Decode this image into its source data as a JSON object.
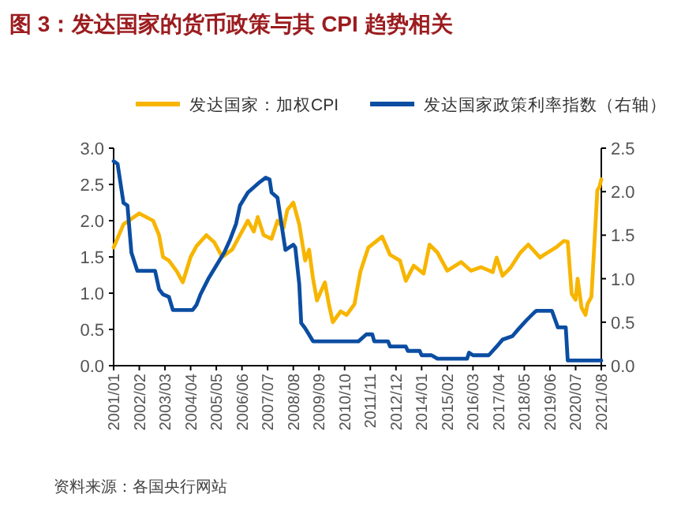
{
  "chart_data": {
    "type": "line",
    "title": "图 3：发达国家的货币政策与其 CPI 趋势相关",
    "annotations": [
      "资料来源：各国央行网站"
    ],
    "legend": "top",
    "grid": false,
    "marker": "none",
    "line_style": "solid",
    "xlim": [
      "2001-01",
      "2021-08"
    ],
    "xticks": [
      {
        "value": "2001-01",
        "label": "2001/01"
      },
      {
        "value": "2002-02",
        "label": "2002/02"
      },
      {
        "value": "2003-03",
        "label": "2003/03"
      },
      {
        "value": "2004-04",
        "label": "2004/04"
      },
      {
        "value": "2005-05",
        "label": "2005/05"
      },
      {
        "value": "2006-06",
        "label": "2006/06"
      },
      {
        "value": "2007-07",
        "label": "2007/07"
      },
      {
        "value": "2008-08",
        "label": "2008/08"
      },
      {
        "value": "2009-09",
        "label": "2009/09"
      },
      {
        "value": "2010-10",
        "label": "2010/10"
      },
      {
        "value": "2011-11",
        "label": "2011/11"
      },
      {
        "value": "2012-12",
        "label": "2012/12"
      },
      {
        "value": "2014-01",
        "label": "2014/01"
      },
      {
        "value": "2015-02",
        "label": "2015/02"
      },
      {
        "value": "2016-03",
        "label": "2016/03"
      },
      {
        "value": "2017-04",
        "label": "2017/04"
      },
      {
        "value": "2018-05",
        "label": "2018/05"
      },
      {
        "value": "2019-06",
        "label": "2019/06"
      },
      {
        "value": "2020-07",
        "label": "2020/07"
      },
      {
        "value": "2021-08",
        "label": "2021/08"
      }
    ],
    "ylim": [
      0,
      3.0
    ],
    "yticks": [
      {
        "value": 0,
        "label": "0.0"
      },
      {
        "value": 0.5,
        "label": "0.5"
      },
      {
        "value": 1,
        "label": "1.0"
      },
      {
        "value": 1.5,
        "label": "1.5"
      },
      {
        "value": 2,
        "label": "2.0"
      },
      {
        "value": 2.5,
        "label": "2.5"
      },
      {
        "value": 3,
        "label": "3.0"
      }
    ],
    "y2lim": [
      0,
      2.5
    ],
    "y2ticks": [
      {
        "value": 0,
        "label": "0.0"
      },
      {
        "value": 0.5,
        "label": "0.5"
      },
      {
        "value": 1,
        "label": "1.0"
      },
      {
        "value": 1.5,
        "label": "1.5"
      },
      {
        "value": 2,
        "label": "2.0"
      },
      {
        "value": 2.5,
        "label": "2.5"
      }
    ],
    "series": [
      {
        "name": "发达国家：加权CPI",
        "color": "#f7b500",
        "x": [
          "2001-01",
          "2001-06",
          "2002-02",
          "2002-09",
          "2002-12",
          "2003-02",
          "2003-05",
          "2003-09",
          "2003-12",
          "2004-04",
          "2004-07",
          "2004-12",
          "2005-04",
          "2005-08",
          "2006-01",
          "2006-05",
          "2006-09",
          "2006-12",
          "2007-02",
          "2007-05",
          "2007-09",
          "2007-12",
          "2008-03",
          "2008-05",
          "2008-08",
          "2008-11",
          "2009-02",
          "2009-04",
          "2009-06",
          "2009-08",
          "2009-12",
          "2010-02",
          "2010-04",
          "2010-08",
          "2010-11",
          "2011-03",
          "2011-06",
          "2011-10",
          "2012-05",
          "2012-09",
          "2013-02",
          "2013-05",
          "2013-09",
          "2014-02",
          "2014-05",
          "2014-09",
          "2015-02",
          "2015-09",
          "2016-02",
          "2016-07",
          "2017-01",
          "2017-03",
          "2017-06",
          "2017-10",
          "2018-03",
          "2018-07",
          "2019-01",
          "2019-03",
          "2019-09",
          "2020-01",
          "2020-03",
          "2020-05",
          "2020-07",
          "2020-08",
          "2020-10",
          "2020-12",
          "2021-01",
          "2021-03",
          "2021-06",
          "2021-07",
          "2021-08"
        ],
        "values": [
          1.63,
          1.95,
          2.1,
          2.0,
          1.8,
          1.5,
          1.45,
          1.3,
          1.15,
          1.5,
          1.65,
          1.8,
          1.7,
          1.5,
          1.6,
          1.8,
          2.0,
          1.85,
          2.05,
          1.8,
          1.75,
          2.0,
          1.9,
          2.15,
          2.25,
          1.95,
          1.45,
          1.6,
          1.2,
          0.9,
          1.15,
          0.85,
          0.6,
          0.75,
          0.7,
          0.85,
          1.3,
          1.63,
          1.78,
          1.53,
          1.45,
          1.17,
          1.38,
          1.27,
          1.67,
          1.56,
          1.31,
          1.43,
          1.31,
          1.36,
          1.29,
          1.49,
          1.24,
          1.35,
          1.56,
          1.67,
          1.49,
          1.53,
          1.63,
          1.72,
          1.71,
          0.99,
          0.91,
          1.2,
          0.8,
          0.7,
          0.85,
          0.95,
          2.42,
          2.46,
          2.57
        ]
      },
      {
        "name": "发达国家政策利率指数（右轴）",
        "color": "#0b4da2",
        "axis": "y2",
        "x": [
          "2001-01",
          "2001-03",
          "2001-06",
          "2001-08",
          "2001-10",
          "2002-01",
          "2002-10",
          "2002-12",
          "2003-02",
          "2003-05",
          "2003-07",
          "2004-05",
          "2004-07",
          "2004-09",
          "2005-01",
          "2005-05",
          "2005-09",
          "2005-12",
          "2006-03",
          "2006-05",
          "2006-09",
          "2007-03",
          "2007-06",
          "2007-08",
          "2007-09",
          "2007-12",
          "2008-03",
          "2008-04",
          "2008-08",
          "2008-09",
          "2008-11",
          "2008-12",
          "2009-02",
          "2009-06",
          "2011-05",
          "2011-09",
          "2011-12",
          "2012-01",
          "2012-08",
          "2012-09",
          "2013-05",
          "2013-06",
          "2013-12",
          "2014-01",
          "2014-06",
          "2014-09",
          "2015-12",
          "2016-01",
          "2016-03",
          "2016-11",
          "2017-03",
          "2017-06",
          "2017-11",
          "2018-02",
          "2018-06",
          "2018-10",
          "2018-11",
          "2019-07",
          "2019-10",
          "2020-02",
          "2020-03",
          "2021-08"
        ],
        "values": [
          2.35,
          2.32,
          1.87,
          1.84,
          1.3,
          1.09,
          1.09,
          0.88,
          0.82,
          0.79,
          0.64,
          0.64,
          0.7,
          0.82,
          1.0,
          1.15,
          1.3,
          1.45,
          1.63,
          1.84,
          1.99,
          2.11,
          2.16,
          2.14,
          1.99,
          1.93,
          1.48,
          1.33,
          1.39,
          1.36,
          0.94,
          0.49,
          0.43,
          0.28,
          0.28,
          0.36,
          0.36,
          0.28,
          0.28,
          0.22,
          0.22,
          0.17,
          0.17,
          0.12,
          0.12,
          0.08,
          0.08,
          0.15,
          0.12,
          0.12,
          0.22,
          0.3,
          0.34,
          0.42,
          0.52,
          0.61,
          0.63,
          0.63,
          0.44,
          0.44,
          0.06,
          0.06
        ]
      }
    ]
  }
}
